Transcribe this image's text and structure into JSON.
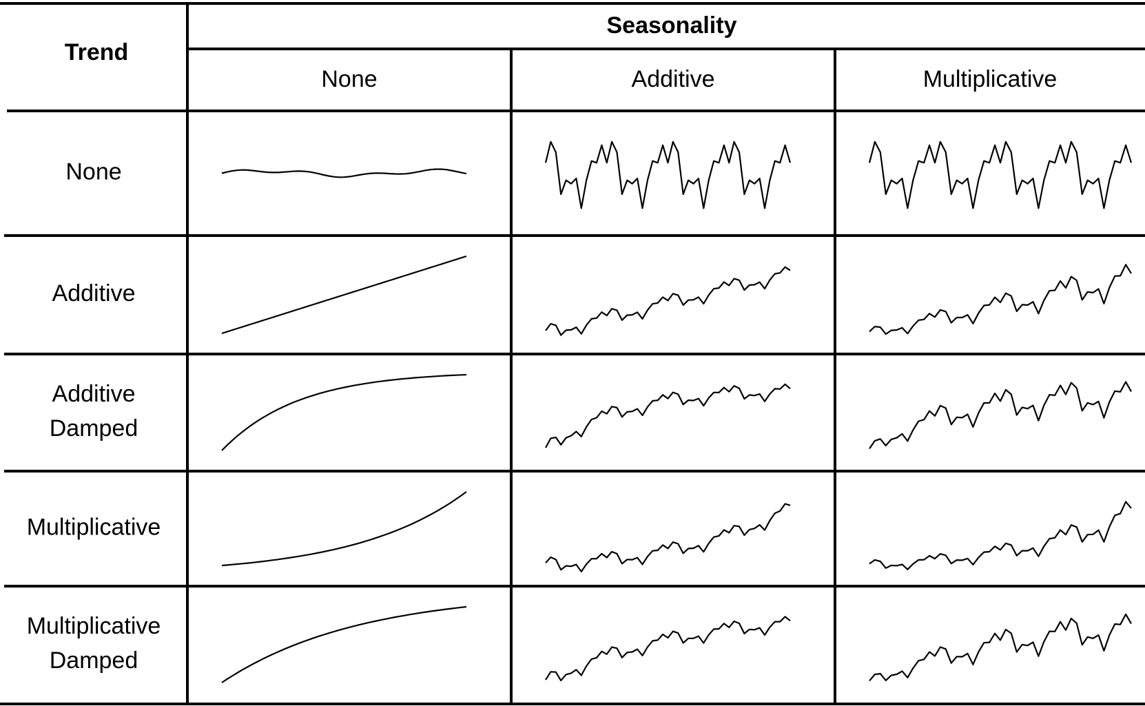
{
  "header": {
    "trend": "Trend",
    "seasonality": "Seasonality",
    "columns": [
      "None",
      "Additive",
      "Multiplicative"
    ]
  },
  "rows": [
    [
      "None"
    ],
    [
      "Additive"
    ],
    [
      "Additive",
      "Damped"
    ],
    [
      "Multiplicative"
    ],
    [
      "Multiplicative",
      "Damped"
    ]
  ]
}
